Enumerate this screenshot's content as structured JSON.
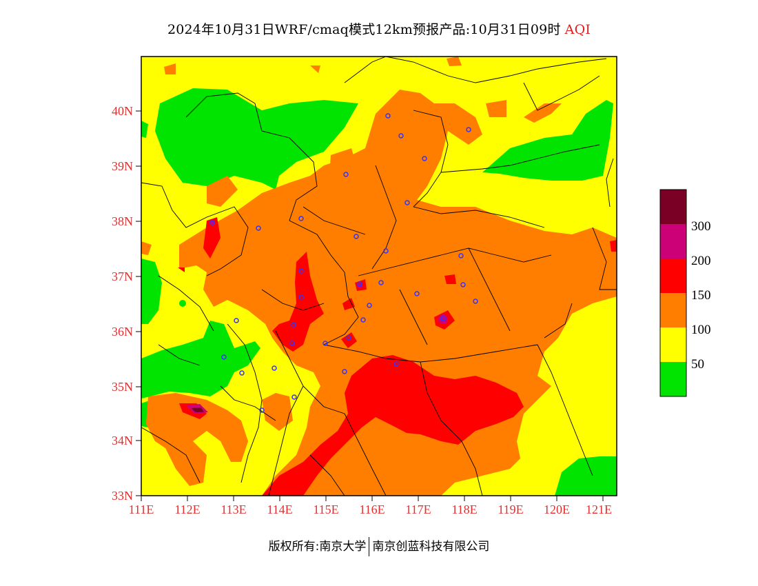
{
  "title": {
    "main": "2024年10月31日WRF/cmaq模式12km预报产品:10月31日09时",
    "product": "AQI"
  },
  "footer": {
    "left": "版权所有:南京大学",
    "right": "南京创蓝科技有限公司"
  },
  "axes": {
    "lat_labels": [
      "40N",
      "39N",
      "38N",
      "37N",
      "36N",
      "35N",
      "34N",
      "33N"
    ],
    "lon_labels": [
      "111E",
      "112E",
      "113E",
      "114E",
      "115E",
      "116E",
      "117E",
      "118E",
      "119E",
      "120E",
      "121E"
    ],
    "label_color": "#e03030"
  },
  "legend": {
    "levels": [
      {
        "label": "300",
        "color": "#7a0026"
      },
      {
        "label": "200",
        "color": "#cc0077"
      },
      {
        "label": "150",
        "color": "#ff0000"
      },
      {
        "label": "100",
        "color": "#ff7e00"
      },
      {
        "label": "50",
        "color": "#ffff00"
      },
      {
        "label": "",
        "color": "#00e400"
      }
    ]
  }
}
